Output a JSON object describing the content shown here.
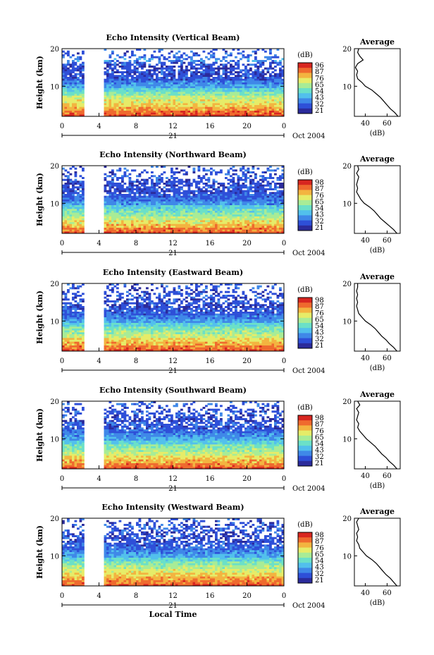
{
  "chart_data": [
    {
      "type": "heatmap",
      "title": "Echo Intensity (Vertical Beam)",
      "ylabel": "Height (km)",
      "yticks": [
        10,
        20
      ],
      "xticks": [
        "0",
        "4",
        "8",
        "12",
        "16",
        "20",
        "0"
      ],
      "xlim": [
        0,
        24
      ],
      "ylim": [
        2,
        20
      ],
      "day_label": "21",
      "date_label": "Oct 2004",
      "colorbar_unit": "(dB)",
      "colorbar_ticks": [
        "96",
        "87",
        "76",
        "65",
        "54",
        "43",
        "32",
        "21"
      ],
      "data_gap_hours": [
        2.3,
        4.4
      ],
      "average_profile": {
        "title": "Average",
        "xlabel": "(dB)",
        "xticks": [
          "40",
          "60"
        ],
        "yticks": [
          10,
          20
        ],
        "xlim": [
          30,
          72
        ],
        "height_km": [
          2,
          3,
          4,
          5,
          6,
          7,
          8,
          9,
          10,
          11,
          12,
          13,
          14,
          15,
          16,
          17,
          18,
          19,
          20
        ],
        "echo_db": [
          70,
          67,
          63,
          60,
          57,
          54,
          50,
          46,
          40,
          37,
          33,
          32,
          33,
          31,
          33,
          38,
          35,
          33,
          34
        ]
      }
    },
    {
      "type": "heatmap",
      "title": "Echo Intensity (Northward Beam)",
      "ylabel": "Height (km)",
      "yticks": [
        10,
        20
      ],
      "xticks": [
        "0",
        "4",
        "8",
        "12",
        "16",
        "20",
        "0"
      ],
      "xlim": [
        0,
        24
      ],
      "ylim": [
        2,
        20
      ],
      "day_label": "21",
      "date_label": "Oct 2004",
      "colorbar_unit": "(dB)",
      "colorbar_ticks": [
        "98",
        "87",
        "76",
        "65",
        "54",
        "43",
        "32",
        "21"
      ],
      "data_gap_hours": [
        2.3,
        4.4
      ],
      "average_profile": {
        "title": "Average",
        "xlabel": "(dB)",
        "xticks": [
          "40",
          "60"
        ],
        "yticks": [
          10,
          20
        ],
        "xlim": [
          30,
          72
        ],
        "height_km": [
          2,
          3,
          4,
          5,
          6,
          7,
          8,
          9,
          10,
          11,
          12,
          13,
          14,
          15,
          16,
          17,
          18,
          19,
          20
        ],
        "echo_db": [
          69,
          66,
          62,
          58,
          54,
          51,
          48,
          44,
          39,
          36,
          34,
          32,
          33,
          32,
          33,
          34,
          32,
          34,
          33
        ]
      }
    },
    {
      "type": "heatmap",
      "title": "Echo Intensity (Eastward Beam)",
      "ylabel": "Height (km)",
      "yticks": [
        10,
        20
      ],
      "xticks": [
        "0",
        "4",
        "8",
        "12",
        "16",
        "20",
        "0"
      ],
      "xlim": [
        0,
        24
      ],
      "ylim": [
        2,
        20
      ],
      "day_label": "21",
      "date_label": "Oct 2004",
      "colorbar_unit": "(dB)",
      "colorbar_ticks": [
        "98",
        "87",
        "76",
        "65",
        "54",
        "43",
        "32",
        "21"
      ],
      "data_gap_hours": [
        2.3,
        4.4
      ],
      "average_profile": {
        "title": "Average",
        "xlabel": "(dB)",
        "xticks": [
          "40",
          "60"
        ],
        "yticks": [
          10,
          20
        ],
        "xlim": [
          30,
          72
        ],
        "height_km": [
          2,
          3,
          4,
          5,
          6,
          7,
          8,
          9,
          10,
          11,
          12,
          13,
          14,
          15,
          16,
          17,
          18,
          19,
          20
        ],
        "echo_db": [
          69,
          66,
          62,
          59,
          55,
          52,
          49,
          45,
          40,
          37,
          34,
          33,
          32,
          33,
          32,
          33,
          32,
          33,
          33
        ]
      }
    },
    {
      "type": "heatmap",
      "title": "Echo Intensity (Southward Beam)",
      "ylabel": "Height (km)",
      "yticks": [
        10,
        20
      ],
      "xticks": [
        "0",
        "4",
        "8",
        "12",
        "16",
        "20",
        "0"
      ],
      "xlim": [
        0,
        24
      ],
      "ylim": [
        2,
        20
      ],
      "day_label": "21",
      "date_label": "Oct 2004",
      "colorbar_unit": "(dB)",
      "colorbar_ticks": [
        "98",
        "87",
        "76",
        "65",
        "54",
        "43",
        "32",
        "21"
      ],
      "data_gap_hours": [
        2.3,
        4.4
      ],
      "average_profile": {
        "title": "Average",
        "xlabel": "(dB)",
        "xticks": [
          "40",
          "60"
        ],
        "yticks": [
          10,
          20
        ],
        "xlim": [
          30,
          72
        ],
        "height_km": [
          2,
          3,
          4,
          5,
          6,
          7,
          8,
          9,
          10,
          11,
          12,
          13,
          14,
          15,
          16,
          17,
          18,
          19,
          20
        ],
        "echo_db": [
          69,
          66,
          62,
          59,
          55,
          52,
          49,
          45,
          41,
          38,
          35,
          33,
          34,
          32,
          33,
          34,
          32,
          35,
          33
        ]
      }
    },
    {
      "type": "heatmap",
      "title": "Echo Intensity (Westward Beam)",
      "ylabel": "Height (km)",
      "yticks": [
        10,
        20
      ],
      "xticks": [
        "0",
        "4",
        "8",
        "12",
        "16",
        "20",
        "0"
      ],
      "xlim": [
        0,
        24
      ],
      "ylim": [
        2,
        20
      ],
      "day_label": "21",
      "date_label": "Oct 2004",
      "xlabel": "Local Time",
      "colorbar_unit": "(dB)",
      "colorbar_ticks": [
        "98",
        "87",
        "76",
        "65",
        "54",
        "43",
        "32",
        "21"
      ],
      "data_gap_hours": [
        2.3,
        4.4
      ],
      "average_profile": {
        "title": "Average",
        "xlabel": "(dB)",
        "xticks": [
          "40",
          "60"
        ],
        "yticks": [
          10,
          20
        ],
        "xlim": [
          30,
          72
        ],
        "height_km": [
          2,
          3,
          4,
          5,
          6,
          7,
          8,
          9,
          10,
          11,
          12,
          13,
          14,
          15,
          16,
          17,
          18,
          19,
          20
        ],
        "echo_db": [
          69,
          66,
          63,
          59,
          56,
          53,
          50,
          46,
          41,
          38,
          35,
          34,
          32,
          33,
          32,
          34,
          33,
          32,
          34
        ]
      }
    }
  ],
  "colors": {
    "colormap": [
      "#2b2b9b",
      "#2e4fd8",
      "#3f88e8",
      "#52c0ec",
      "#6be0c8",
      "#a8ec96",
      "#e6ec68",
      "#f3b440",
      "#ef6a2e",
      "#d82620"
    ],
    "axis": "#000000"
  }
}
